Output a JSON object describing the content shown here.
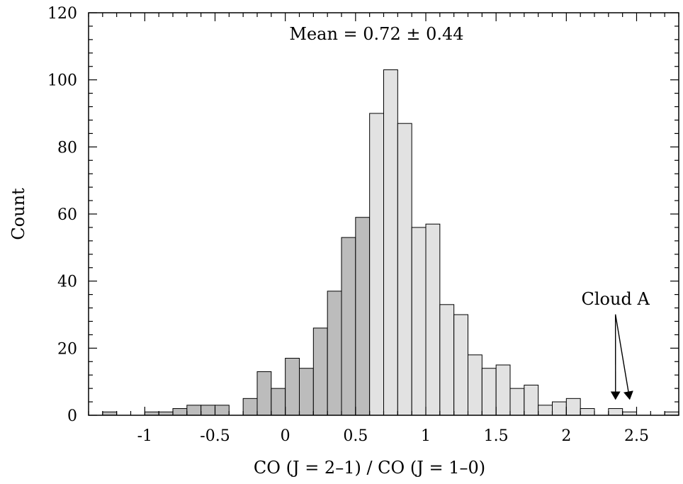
{
  "chart_data": {
    "type": "bar",
    "xlabel": "CO (J = 2–1)  /  CO (J = 1–0)",
    "ylabel": "Count",
    "xlim": [
      -1.4,
      2.8
    ],
    "ylim": [
      0,
      120
    ],
    "bin_width": 0.1,
    "bar_colors": {
      "left": "#bcbcbc",
      "right": "#e2e2e2"
    },
    "x_ticks": [
      {
        "value": -1,
        "label": "-1"
      },
      {
        "value": -0.5,
        "label": "-0.5"
      },
      {
        "value": 0,
        "label": "0"
      },
      {
        "value": 0.5,
        "label": "0.5"
      },
      {
        "value": 1,
        "label": "1"
      },
      {
        "value": 1.5,
        "label": "1.5"
      },
      {
        "value": 2,
        "label": "2"
      },
      {
        "value": 2.5,
        "label": "2.5"
      }
    ],
    "y_ticks": [
      {
        "value": 0,
        "label": "0"
      },
      {
        "value": 20,
        "label": "20"
      },
      {
        "value": 40,
        "label": "40"
      },
      {
        "value": 60,
        "label": "60"
      },
      {
        "value": 80,
        "label": "80"
      },
      {
        "value": 100,
        "label": "100"
      },
      {
        "value": 120,
        "label": "120"
      }
    ],
    "bins": [
      {
        "x0": -1.3,
        "count": 1
      },
      {
        "x0": -1.0,
        "count": 1
      },
      {
        "x0": -0.9,
        "count": 1
      },
      {
        "x0": -0.8,
        "count": 2
      },
      {
        "x0": -0.7,
        "count": 3
      },
      {
        "x0": -0.6,
        "count": 3
      },
      {
        "x0": -0.5,
        "count": 3
      },
      {
        "x0": -0.3,
        "count": 5
      },
      {
        "x0": -0.2,
        "count": 13
      },
      {
        "x0": -0.1,
        "count": 8
      },
      {
        "x0": 0.0,
        "count": 17
      },
      {
        "x0": 0.1,
        "count": 14
      },
      {
        "x0": 0.2,
        "count": 26
      },
      {
        "x0": 0.3,
        "count": 37
      },
      {
        "x0": 0.4,
        "count": 53
      },
      {
        "x0": 0.5,
        "count": 59
      },
      {
        "x0": 0.6,
        "count": 90
      },
      {
        "x0": 0.7,
        "count": 103
      },
      {
        "x0": 0.8,
        "count": 87
      },
      {
        "x0": 0.9,
        "count": 56
      },
      {
        "x0": 1.0,
        "count": 57
      },
      {
        "x0": 1.1,
        "count": 33
      },
      {
        "x0": 1.2,
        "count": 30
      },
      {
        "x0": 1.3,
        "count": 18
      },
      {
        "x0": 1.4,
        "count": 14
      },
      {
        "x0": 1.5,
        "count": 15
      },
      {
        "x0": 1.6,
        "count": 8
      },
      {
        "x0": 1.7,
        "count": 9
      },
      {
        "x0": 1.8,
        "count": 3
      },
      {
        "x0": 1.9,
        "count": 4
      },
      {
        "x0": 2.0,
        "count": 5
      },
      {
        "x0": 2.1,
        "count": 2
      },
      {
        "x0": 2.3,
        "count": 2
      },
      {
        "x0": 2.4,
        "count": 1
      },
      {
        "x0": 2.7,
        "count": 1
      }
    ],
    "annotations": {
      "mean_label": "Mean = 0.72 ± 0.44",
      "mean_label_pos": {
        "x": 0.72,
        "y": 112
      },
      "cloud_label": "Cloud A",
      "cloud_label_pos": {
        "x": 2.4,
        "y": 33
      },
      "cloud_arrow_tips": [
        {
          "x": 2.35,
          "y": 5
        },
        {
          "x": 2.45,
          "y": 5
        }
      ]
    }
  }
}
